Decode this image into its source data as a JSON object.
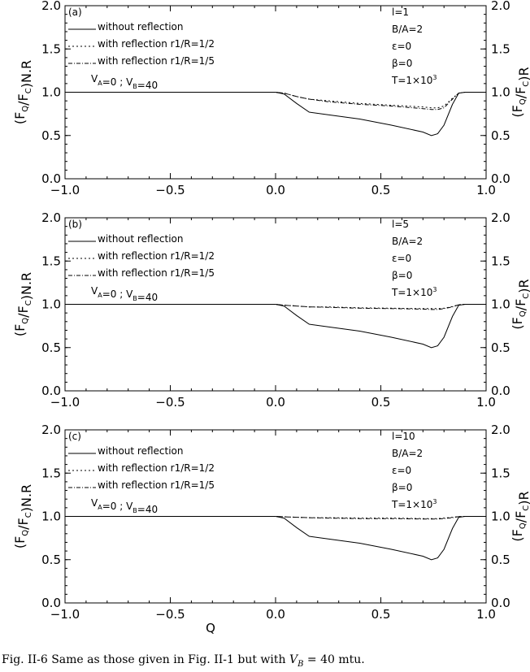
{
  "chart_data": [
    {
      "type": "line",
      "panel_label": "(a)",
      "x": [
        -1.0,
        -0.4,
        -0.15,
        0.0,
        0.04,
        0.1,
        0.16,
        0.25,
        0.4,
        0.55,
        0.7,
        0.74,
        0.77,
        0.8,
        0.84,
        0.87,
        0.9,
        1.0
      ],
      "series": [
        {
          "name": "without reflection",
          "dash": "solid",
          "values": [
            1.0,
            1.0,
            1.0,
            1.0,
            0.98,
            0.87,
            0.77,
            0.74,
            0.69,
            0.62,
            0.54,
            0.5,
            0.52,
            0.62,
            0.86,
            0.99,
            1.0,
            1.0
          ]
        },
        {
          "name": "with reflection r1/R=1/2",
          "dash": "2,3",
          "values": [
            1.0,
            1.0,
            1.0,
            1.0,
            0.99,
            0.95,
            0.92,
            0.9,
            0.87,
            0.85,
            0.83,
            0.82,
            0.82,
            0.84,
            0.93,
            0.99,
            1.0,
            1.0
          ]
        },
        {
          "name": "with reflection r1/R=1/5",
          "dash": "5,2,1,2",
          "values": [
            1.0,
            1.0,
            1.0,
            1.0,
            0.99,
            0.95,
            0.92,
            0.89,
            0.86,
            0.84,
            0.81,
            0.8,
            0.8,
            0.82,
            0.92,
            0.99,
            1.0,
            1.0
          ]
        }
      ],
      "params": [
        "l=1",
        "B/A=2",
        "ε=0",
        "β=0",
        "T=1×10³"
      ],
      "velocity_label": "VA=0 ; VB=40",
      "xlim": [
        -1.0,
        1.0
      ],
      "ylim": [
        0.0,
        2.0
      ],
      "xticks": [
        "−1.0",
        "−0.5",
        "0.0",
        "0.5",
        "1.0"
      ],
      "yticks": [
        "0.0",
        "0.5",
        "1.0",
        "1.5",
        "2.0"
      ],
      "ylabel_left": "(FQ/FC)N.R",
      "ylabel_right": "(FQ/FC)R",
      "xlabel": ""
    },
    {
      "type": "line",
      "panel_label": "(b)",
      "x": [
        -1.0,
        -0.4,
        -0.15,
        0.0,
        0.04,
        0.1,
        0.16,
        0.25,
        0.4,
        0.55,
        0.7,
        0.74,
        0.77,
        0.8,
        0.84,
        0.87,
        0.9,
        1.0
      ],
      "series": [
        {
          "name": "without reflection",
          "dash": "solid",
          "values": [
            1.0,
            1.0,
            1.0,
            1.0,
            0.98,
            0.87,
            0.77,
            0.74,
            0.69,
            0.62,
            0.54,
            0.5,
            0.52,
            0.62,
            0.86,
            0.99,
            1.0,
            1.0
          ]
        },
        {
          "name": "with reflection r1/R=1/2",
          "dash": "2,3",
          "values": [
            1.0,
            1.0,
            1.0,
            1.0,
            0.99,
            0.98,
            0.97,
            0.97,
            0.96,
            0.955,
            0.95,
            0.95,
            0.95,
            0.955,
            0.975,
            0.995,
            1.0,
            1.0
          ]
        },
        {
          "name": "with reflection r1/R=1/5",
          "dash": "5,2,1,2",
          "values": [
            1.0,
            1.0,
            1.0,
            1.0,
            0.99,
            0.98,
            0.97,
            0.965,
            0.955,
            0.95,
            0.945,
            0.94,
            0.94,
            0.95,
            0.97,
            0.995,
            1.0,
            1.0
          ]
        }
      ],
      "params": [
        "l=5",
        "B/A=2",
        "ε=0",
        "β=0",
        "T=1×10³"
      ],
      "velocity_label": "VA=0 ; VB=40",
      "xlim": [
        -1.0,
        1.0
      ],
      "ylim": [
        0.0,
        2.0
      ],
      "xticks": [
        "−1.0",
        "−0.5",
        "0.0",
        "0.5",
        "1.0"
      ],
      "yticks": [
        "0.0",
        "0.5",
        "1.0",
        "1.5",
        "2.0"
      ],
      "ylabel_left": "(FQ/FC)N.R",
      "ylabel_right": "(FQ/FC)R",
      "xlabel": ""
    },
    {
      "type": "line",
      "panel_label": "(c)",
      "x": [
        -1.0,
        -0.4,
        -0.15,
        0.0,
        0.04,
        0.1,
        0.16,
        0.25,
        0.4,
        0.55,
        0.7,
        0.74,
        0.77,
        0.8,
        0.84,
        0.87,
        0.9,
        1.0
      ],
      "series": [
        {
          "name": "without reflection",
          "dash": "solid",
          "values": [
            1.0,
            1.0,
            1.0,
            1.0,
            0.98,
            0.87,
            0.77,
            0.74,
            0.69,
            0.62,
            0.54,
            0.5,
            0.52,
            0.62,
            0.86,
            0.99,
            1.0,
            1.0
          ]
        },
        {
          "name": "with reflection r1/R=1/2",
          "dash": "2,3",
          "values": [
            1.0,
            1.0,
            1.0,
            1.0,
            0.995,
            0.99,
            0.985,
            0.985,
            0.98,
            0.98,
            0.975,
            0.975,
            0.975,
            0.98,
            0.99,
            0.998,
            1.0,
            1.0
          ]
        },
        {
          "name": "with reflection r1/R=1/5",
          "dash": "5,2,1,2",
          "values": [
            1.0,
            1.0,
            1.0,
            1.0,
            0.995,
            0.99,
            0.985,
            0.98,
            0.975,
            0.975,
            0.97,
            0.97,
            0.97,
            0.975,
            0.985,
            0.998,
            1.0,
            1.0
          ]
        }
      ],
      "params": [
        "l=10",
        "B/A=2",
        "ε=0",
        "β=0",
        "T=1×10³"
      ],
      "velocity_label": "VA=0 ; VB=40",
      "xlim": [
        -1.0,
        1.0
      ],
      "ylim": [
        0.0,
        2.0
      ],
      "xticks": [
        "−1.0",
        "−0.5",
        "0.0",
        "0.5",
        "1.0"
      ],
      "yticks": [
        "0.0",
        "0.5",
        "1.0",
        "1.5",
        "2.0"
      ],
      "ylabel_left": "(FQ/FC)N.R",
      "ylabel_right": "(FQ/FC)R",
      "xlabel": "Q"
    }
  ],
  "caption": {
    "prefix": "Fig. II-6 Same as those given in Fig. II-1 but with ",
    "var": "V",
    "sub": "B",
    "suffix": " = 40 mtu."
  }
}
